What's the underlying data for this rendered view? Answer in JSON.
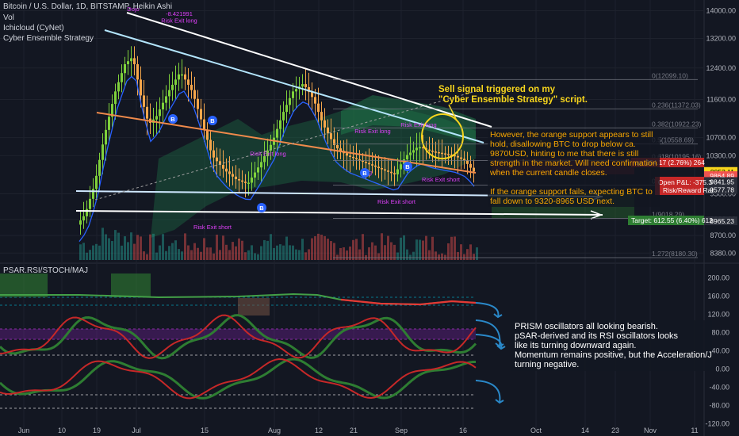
{
  "header": {
    "symbol_line": "Bitcoin / U.S. Dollar, 1D, BITSTAMP, Heikin Ashi",
    "vol_label": "Vol",
    "ichicloud_label": "Ichicloud (CyNet)",
    "strategy_label": "Cyber Ensemble Strategy",
    "osc_label": "PSAR.RSI/STOCH/MAJ"
  },
  "notes": {
    "sell_signal": "Sell signal triggered on my\n\"Cyber Ensemble Strategy\" script.",
    "support": "However, the orange support appears to still\nhold, disallowing BTC to drop below ca.\n9870USD, hinting to me that there is still\nstrength in the market. Will need confirmation\nwhen the current candle closes.\n\nIf the orange support fails, expecting BTC to\nfall down to 9320-8965 USD next.",
    "prism": "PRISM oscillators all looking bearish.\npSAR-derived and its RSI oscillators looks\nlike its turning downward again.\nMomentum remains positive, but the Acceleration/Jerk is\nturning negative."
  },
  "colors": {
    "background": "#131722",
    "bull": "#26a69a",
    "bear": "#ef5350",
    "ha_green": "#7fd13b",
    "ha_orange": "#f4a64b",
    "trend_white": "#ffffff",
    "support_orange": "#f08a4b",
    "annotation_yellow": "#f7d51d",
    "ichimoku_cloud": "#1f7a4a",
    "arrow_blue": "#2a88c8",
    "label_magenta": "#e040fb"
  },
  "chart_data": {
    "type": "candlestick",
    "y_scale": "log",
    "ylim": [
      8300,
      14200
    ],
    "x_axis_labels": [
      "Jun",
      "10",
      "19",
      "Jul",
      "15",
      "Aug",
      "12",
      "21",
      "Sep",
      "16",
      "Oct",
      "14",
      "23",
      "Nov",
      "11"
    ],
    "price_ticks": [
      "14000.00",
      "13200.00",
      "12400.00",
      "11600.00",
      "10700.00",
      "10300.00",
      "9500.00",
      "9000.00",
      "8700.00",
      "8380.00"
    ],
    "fib_levels": [
      {
        "label": "0(12099.10)",
        "value": 12099.1
      },
      {
        "label": "0.236(11372.03)",
        "value": 11372.03
      },
      {
        "label": "0.382(10922.23)",
        "value": 10922.23
      },
      {
        "label": "0.5(10558.69)",
        "value": 10558.69
      },
      {
        "label": "0.618(10195.16)",
        "value": 10195.16
      },
      {
        "label": "0.786(9677.48)",
        "value": 9677.48
      },
      {
        "label": "1(9018.29)",
        "value": 9018.29
      },
      {
        "label": "1.272(8180.30)",
        "value": 8180.3
      }
    ],
    "price_tags": [
      {
        "text": "9953.11",
        "value": 9953.11,
        "color": "#f7d51d",
        "textColor": "#000000"
      },
      {
        "text": "9864.89",
        "value": 9864.89,
        "color": "#ef5350",
        "textColor": "#ffffff"
      },
      {
        "text": "9841.95",
        "value": 9841.95,
        "color": "#2a2e39",
        "textColor": "#ffffff"
      },
      {
        "text": "9577.78",
        "value": 9577.78,
        "color": "#2a2e39",
        "textColor": "#ffffff"
      },
      {
        "text": "8965.23",
        "value": 8965.23,
        "color": "#2a2e39",
        "textColor": "#ffffff"
      }
    ],
    "position_labels": {
      "stop": "op: 264.17 (2.76%) 264",
      "open_pl": "Open P&L: -375.3",
      "risk_reward": "Risk/Reward Rat",
      "target": "Target: 612.55 (6.40%) 612"
    },
    "strategy_labels": [
      {
        "text": "-8.421991",
        "x_date": "Jun 26",
        "y": 13850
      },
      {
        "text": "Risk Exit long",
        "x_date": "Jun 26",
        "y": 13650
      },
      {
        "text": "Risk Exit short",
        "x_date": "Jul 11",
        "y": 8820
      },
      {
        "text": "Risk Exit long",
        "x_date": "Aug 02",
        "y": 10300
      },
      {
        "text": "Risk Exit long",
        "x_date": "Aug 23",
        "y": 10800
      },
      {
        "text": "Risk Exit long",
        "x_date": "Sep 02",
        "y": 10950
      },
      {
        "text": "Risk Exit short",
        "x_date": "Sep 06",
        "y": 9750
      },
      {
        "text": "Risk Exit short",
        "x_date": "Aug 29",
        "y": 9300
      },
      {
        "text": "long",
        "x_date": "Aug 25",
        "y": 9900
      },
      {
        "text": "Dojo",
        "x_date": "Jun 20",
        "y": 14000
      }
    ],
    "osc_ticks": [
      "200.00",
      "160.00",
      "120.00",
      "80.00",
      "40.00",
      "0.00",
      "-40.00",
      "-80.00",
      "-120.00"
    ],
    "osc_ylim": [
      -130,
      215
    ]
  }
}
